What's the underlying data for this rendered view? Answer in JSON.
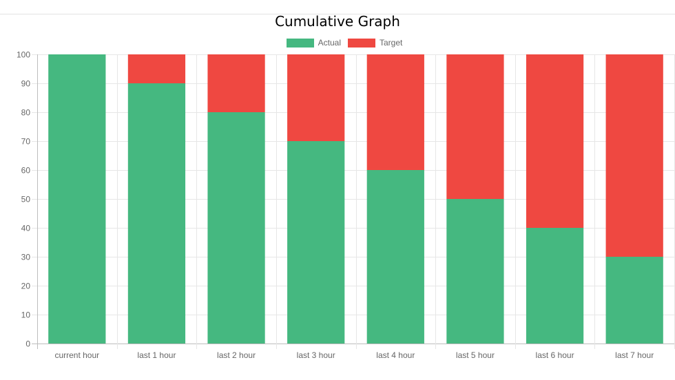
{
  "chart_data": {
    "type": "bar",
    "stacked": true,
    "title": "Cumulative Graph",
    "categories": [
      "current hour",
      "last 1 hour",
      "last 2 hour",
      "last 3 hour",
      "last 4 hour",
      "last 5 hour",
      "last 6 hour",
      "last 7 hour"
    ],
    "series": [
      {
        "name": "Actual",
        "color": "#45b880",
        "values": [
          100,
          90,
          80,
          70,
          60,
          50,
          40,
          30
        ]
      },
      {
        "name": "Target",
        "color": "#ef4841",
        "values": [
          0,
          10,
          20,
          30,
          40,
          50,
          60,
          70
        ]
      }
    ],
    "ylim": [
      0,
      100
    ],
    "yticks": [
      0,
      10,
      20,
      30,
      40,
      50,
      60,
      70,
      80,
      90,
      100
    ],
    "grid": true,
    "legend_position": "top"
  }
}
